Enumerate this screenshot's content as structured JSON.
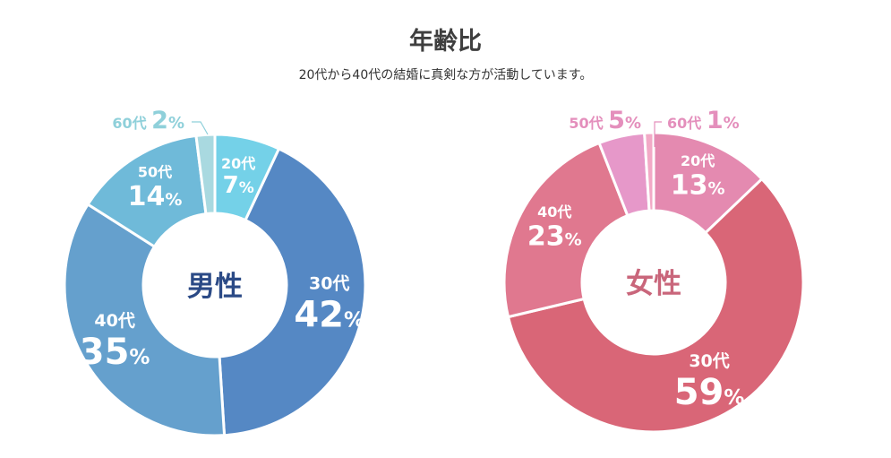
{
  "title": "年齢比",
  "subtitle": "20代から40代の結婚に真剣な方が活動しています。",
  "chart_data": [
    {
      "type": "pie",
      "title": "男性",
      "categories": [
        "20代",
        "30代",
        "40代",
        "50代",
        "60代"
      ],
      "values": [
        7,
        42,
        35,
        14,
        2
      ],
      "colors": [
        "#74d1e8",
        "#5588c4",
        "#65a0cd",
        "#6fbad9",
        "#a9d9e0"
      ],
      "center_color": "#2b4a86",
      "outside_color": "#8fd0da"
    },
    {
      "type": "pie",
      "title": "女性",
      "categories": [
        "20代",
        "30代",
        "40代",
        "50代",
        "60代"
      ],
      "values": [
        13,
        59,
        23,
        5,
        1
      ],
      "colors": [
        "#e48ab0",
        "#d96677",
        "#e0788f",
        "#e698c9",
        "#f2a9c6"
      ],
      "center_color": "#c9667b",
      "outside_color": "#e48fbc"
    }
  ]
}
